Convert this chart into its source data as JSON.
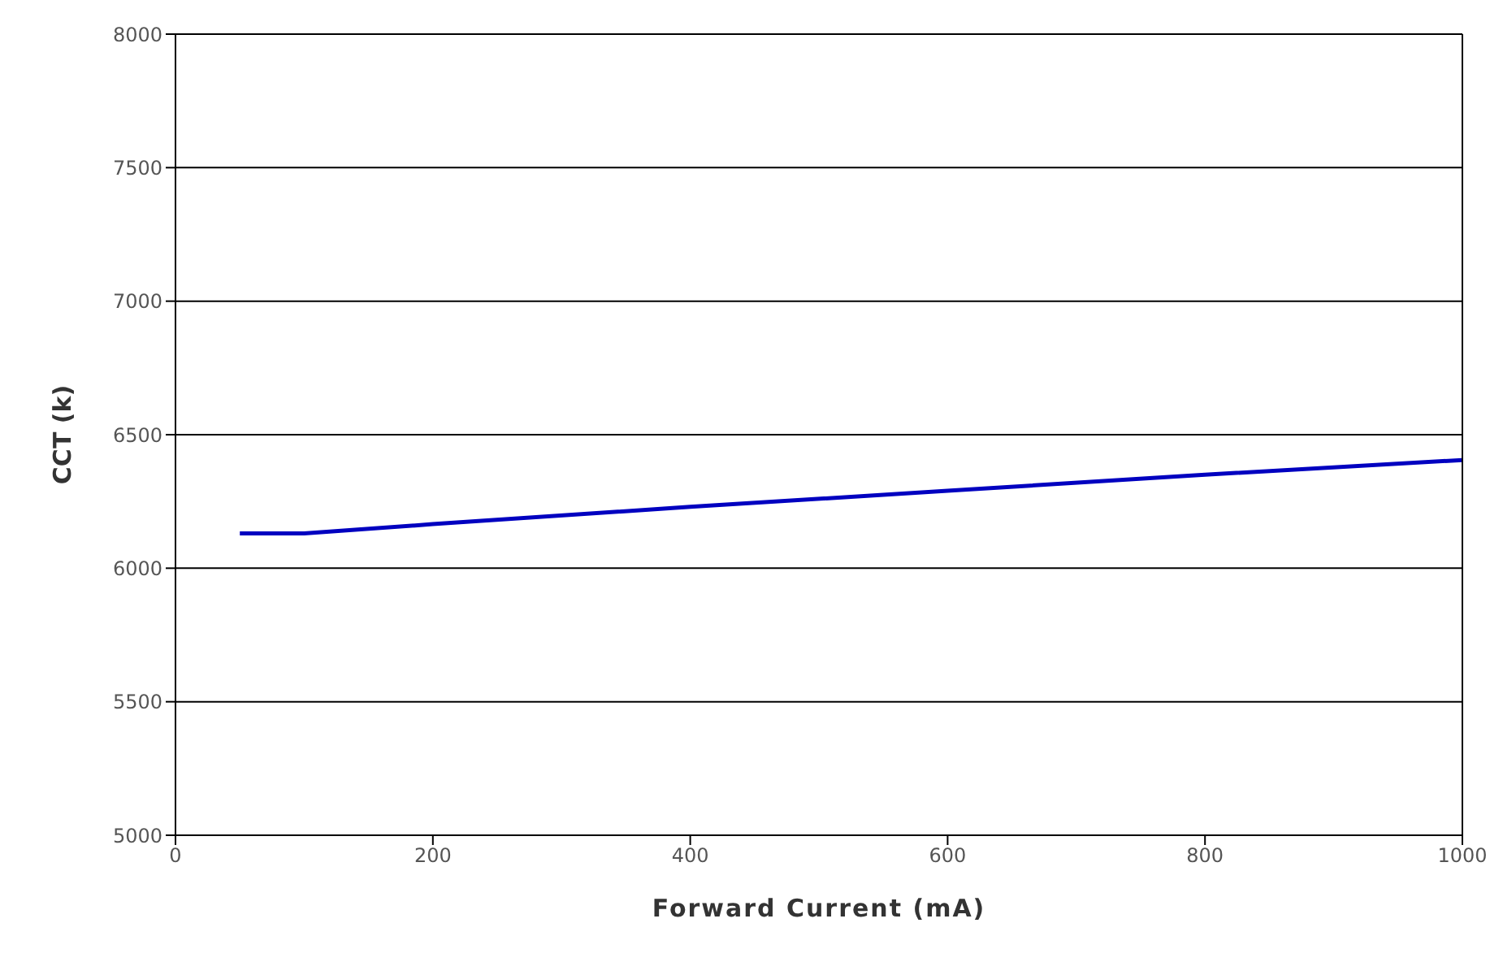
{
  "chart_data": {
    "type": "line",
    "xlabel": "Forward Current (mA)",
    "ylabel": "CCT (k)",
    "x": [
      50,
      100,
      200,
      400,
      600,
      800,
      1000
    ],
    "series": [
      {
        "color": "#0000c0",
        "values": [
          6130,
          6130,
          6165,
          6230,
          6290,
          6350,
          6405
        ]
      }
    ],
    "xlim": [
      0,
      1000
    ],
    "xticks": [
      0,
      200,
      400,
      600,
      800,
      1000
    ],
    "ylim": [
      5000,
      8000
    ],
    "yticks": [
      5000,
      5500,
      6000,
      6500,
      7000,
      7500,
      8000
    ],
    "grid": "y",
    "legend": false,
    "marker": "none",
    "line_style": "solid"
  }
}
